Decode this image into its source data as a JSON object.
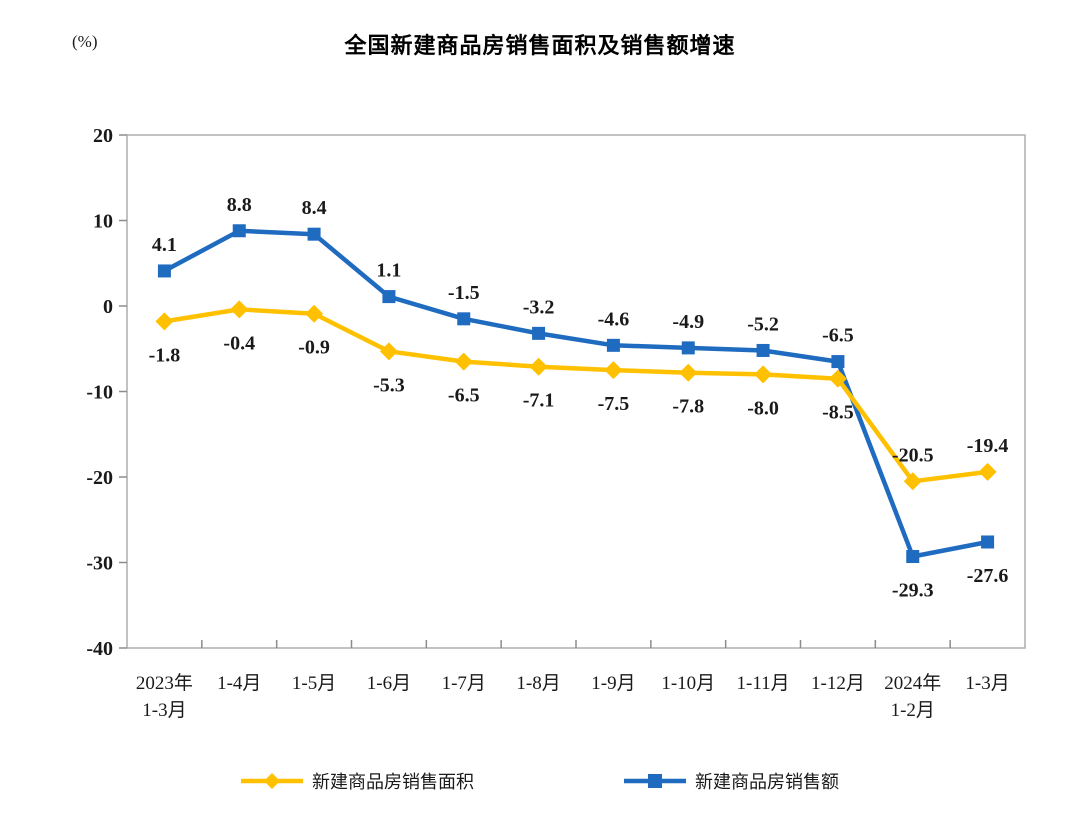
{
  "page": {
    "background": "#ffffff"
  },
  "chart_data": {
    "type": "line",
    "title": "全国新建商品房销售面积及销售额增速",
    "unit_label": "(%)",
    "categories": [
      "2023年\n1-3月",
      "1-4月",
      "1-5月",
      "1-6月",
      "1-7月",
      "1-8月",
      "1-9月",
      "1-10月",
      "1-11月",
      "1-12月",
      "2024年\n1-2月",
      "1-3月"
    ],
    "ylim": [
      -40,
      20
    ],
    "yticks": [
      20,
      10,
      0,
      -10,
      -20,
      -30,
      -40
    ],
    "grid": false,
    "legend_position": "bottom",
    "axis_color": "#ADADAD",
    "tick_color": "#8C8C8C",
    "text_color": "#1a1a1a",
    "series": [
      {
        "name": "新建商品房销售面积",
        "color": "#FFC000",
        "marker": "diamond",
        "draw_order": 2,
        "values": [
          -1.8,
          -0.4,
          -0.9,
          -5.3,
          -6.5,
          -7.1,
          -7.5,
          -7.8,
          -8.0,
          -8.5,
          -20.5,
          -19.4
        ],
        "label_side": [
          "below",
          "below",
          "below",
          "below",
          "below",
          "below",
          "below",
          "below",
          "below",
          "below",
          "above",
          "above"
        ]
      },
      {
        "name": "新建商品房销售额",
        "color": "#1F6BC0",
        "marker": "square",
        "draw_order": 1,
        "values": [
          4.1,
          8.8,
          8.4,
          1.1,
          -1.5,
          -3.2,
          -4.6,
          -4.9,
          -5.2,
          -6.5,
          -29.3,
          -27.6
        ],
        "label_side": [
          "above",
          "above",
          "above",
          "above",
          "above",
          "above",
          "above",
          "above",
          "above",
          "above",
          "below",
          "below"
        ]
      }
    ]
  }
}
